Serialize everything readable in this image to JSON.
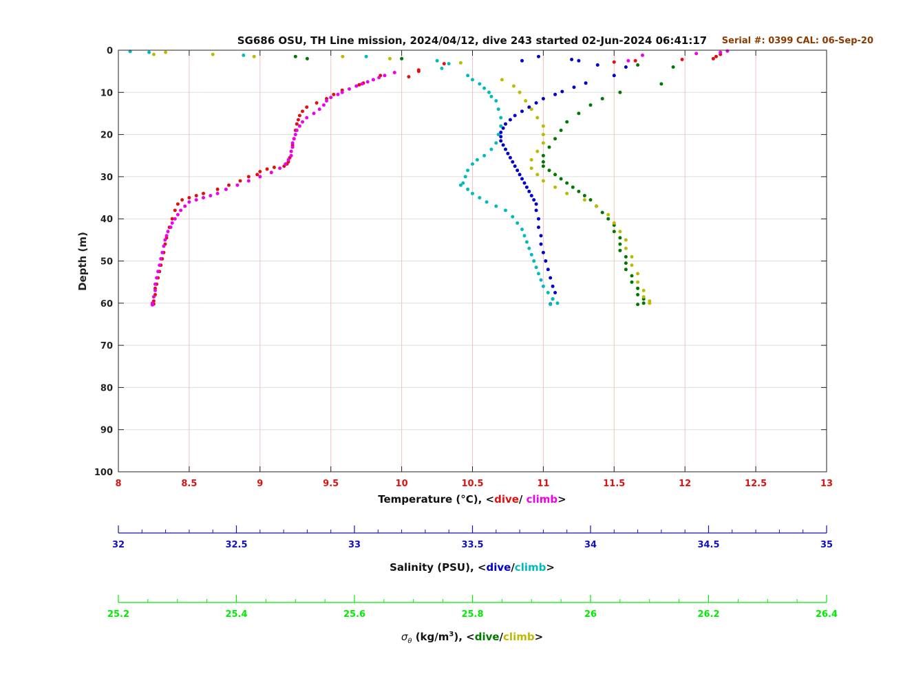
{
  "chart_data": {
    "type": "scatter",
    "title": "SG686 OSU, TH Line mission, 2024/04/12, dive 243 started 02-Jun-2024 06:41:17",
    "serial_text": "Serial #: 0399  CAL: 06-Sep-20",
    "ylabel": "Depth (m)",
    "ylim": [
      0,
      100
    ],
    "y_reversed": true,
    "y_ticks": [
      "0",
      "10",
      "20",
      "30",
      "40",
      "50",
      "60",
      "70",
      "80",
      "90",
      "100"
    ],
    "grid": true,
    "colors": {
      "temp_axis": "#e01010",
      "sal_axis": "#1010c0",
      "sig_axis": "#00ee00",
      "temp_dive": "#e01010",
      "temp_climb": "#ee00ee",
      "sal_dive": "#0000cc",
      "sal_climb": "#00bbbb",
      "sig_dive": "#007700",
      "sig_climb": "#bbbb00",
      "serial": "#8b3a00",
      "temp_grid": "#f4c2c2",
      "depth_grid": "#dddddd"
    },
    "axes": [
      {
        "id": "temperature",
        "label_prefix": "Temperature (°C), <",
        "label_dive": "dive",
        "label_sep": "/ ",
        "label_climb": "climb",
        "label_suffix": ">",
        "range": [
          8,
          13
        ],
        "ticks": [
          "8",
          "8.5",
          "9",
          "9.5",
          "10",
          "10.5",
          "11",
          "11.5",
          "12",
          "12.5",
          "13"
        ]
      },
      {
        "id": "salinity",
        "label_prefix": "Salinity (PSU), <",
        "label_dive": "dive",
        "label_sep": "/",
        "label_climb": "climb",
        "label_suffix": ">",
        "range": [
          32,
          35
        ],
        "ticks": [
          "32",
          "32.5",
          "33",
          "33.5",
          "34",
          "34.5",
          "35"
        ]
      },
      {
        "id": "sigma",
        "label_sym": "σ",
        "label_sub": "θ",
        "label_units": " (kg/m",
        "label_sup": "3",
        "label_prefix": "), <",
        "label_dive": "dive",
        "label_sep": "/",
        "label_climb": "climb",
        "label_suffix": ">",
        "range": [
          25.2,
          26.4
        ],
        "ticks": [
          "25.2",
          "25.4",
          "25.6",
          "25.8",
          "26",
          "26.2",
          "26.4"
        ]
      }
    ],
    "series": [
      {
        "name": "dive",
        "variable": "temperature",
        "x": [
          12.25,
          12.22,
          12.2,
          11.98,
          11.65,
          11.5,
          10.3,
          10.12,
          10.05,
          10.12,
          9.85,
          9.8,
          9.73,
          9.7,
          9.58,
          9.52,
          9.47,
          9.4,
          9.33,
          9.3,
          9.28,
          9.27,
          9.26,
          9.25,
          9.24,
          9.23,
          9.22,
          9.21,
          9.2,
          9.19,
          9.17,
          9.1,
          9.05,
          9.0,
          8.98,
          8.92,
          8.86,
          8.78,
          8.7,
          8.6,
          8.55,
          8.5,
          8.45,
          8.42,
          8.4,
          8.38,
          8.36,
          8.34,
          8.33,
          8.32,
          8.31,
          8.3,
          8.29,
          8.28,
          8.27,
          8.26,
          8.26,
          8.25,
          8.25
        ],
        "y": [
          1.0,
          1.5,
          2.0,
          2.2,
          2.5,
          2.8,
          3.2,
          4.7,
          6.3,
          5.0,
          6.0,
          7.0,
          7.8,
          8.2,
          9.5,
          10.5,
          11.5,
          12.5,
          13.5,
          14.5,
          15.5,
          16.5,
          17.5,
          19.0,
          21.0,
          22.5,
          24.0,
          25.5,
          26.5,
          27.0,
          27.5,
          27.8,
          28.2,
          28.8,
          29.5,
          30.0,
          31.0,
          32.0,
          33.0,
          34.0,
          34.5,
          35.0,
          35.5,
          36.5,
          38.0,
          40.0,
          42.0,
          44.5,
          46.0,
          48.0,
          49.5,
          51.0,
          52.5,
          54.0,
          55.5,
          56.5,
          58.0,
          59.5,
          60.2
        ]
      },
      {
        "name": "climb",
        "variable": "temperature",
        "x": [
          12.3,
          12.25,
          12.08,
          11.7,
          11.6,
          9.95,
          9.88,
          9.84,
          9.8,
          9.76,
          9.72,
          9.68,
          9.63,
          9.58,
          9.55,
          9.5,
          9.47,
          9.45,
          9.42,
          9.38,
          9.33,
          9.3,
          9.28,
          9.26,
          9.25,
          9.24,
          9.23,
          9.23,
          9.22,
          9.22,
          9.2,
          9.18,
          9.14,
          9.08,
          9.0,
          8.92,
          8.84,
          8.76,
          8.7,
          8.65,
          8.6,
          8.55,
          8.5,
          8.47,
          8.44,
          8.42,
          8.4,
          8.38,
          8.37,
          8.35,
          8.34,
          8.33,
          8.32,
          8.31,
          8.3,
          8.29,
          8.28,
          8.27,
          8.26,
          8.26,
          8.25,
          8.24,
          8.24
        ],
        "y": [
          0.2,
          0.5,
          0.8,
          1.2,
          2.5,
          5.3,
          6.0,
          6.5,
          7.0,
          7.5,
          8.0,
          8.5,
          9.2,
          10.0,
          10.5,
          11.2,
          12.0,
          13.0,
          14.0,
          15.0,
          16.0,
          17.0,
          18.0,
          19.0,
          20.0,
          21.0,
          22.0,
          23.0,
          24.0,
          25.0,
          26.0,
          27.0,
          28.0,
          29.0,
          30.0,
          31.0,
          32.0,
          33.0,
          34.0,
          34.5,
          35.0,
          35.5,
          36.0,
          37.0,
          38.0,
          39.0,
          40.0,
          41.0,
          42.0,
          43.0,
          44.0,
          45.0,
          46.5,
          48.0,
          49.5,
          51.0,
          52.5,
          54.0,
          55.5,
          57.0,
          58.5,
          60.0,
          60.4
        ]
      },
      {
        "name": "dive",
        "variable": "salinity",
        "x": [
          33.78,
          33.71,
          33.92,
          33.95,
          34.03,
          34.15,
          34.1,
          33.98,
          33.93,
          33.88,
          33.85,
          33.8,
          33.77,
          33.74,
          33.71,
          33.68,
          33.66,
          33.64,
          33.63,
          33.62,
          33.62,
          33.62,
          33.63,
          33.64,
          33.65,
          33.66,
          33.67,
          33.68,
          33.69,
          33.7,
          33.71,
          33.72,
          33.73,
          33.74,
          33.75,
          33.76,
          33.77,
          33.77,
          33.78,
          33.78,
          33.79,
          33.79,
          33.8,
          33.81,
          33.82,
          33.83,
          33.84,
          33.85,
          33.84,
          33.83
        ],
        "y": [
          1.5,
          2.5,
          2.2,
          2.5,
          3.5,
          4.0,
          6.0,
          7.8,
          8.8,
          9.8,
          10.5,
          11.5,
          12.5,
          13.5,
          14.5,
          15.5,
          16.5,
          17.5,
          18.5,
          19.5,
          20.5,
          21.5,
          22.5,
          23.5,
          24.5,
          25.5,
          26.5,
          27.5,
          28.5,
          29.5,
          30.5,
          31.5,
          32.5,
          33.5,
          34.5,
          35.5,
          36.5,
          38.0,
          40.0,
          42.0,
          44.0,
          46.0,
          48.0,
          50.0,
          52.0,
          54.0,
          56.0,
          57.5,
          59.0,
          60.2
        ]
      },
      {
        "name": "climb",
        "variable": "salinity",
        "x": [
          32.05,
          32.13,
          32.53,
          33.05,
          33.35,
          33.4,
          33.37,
          33.48,
          33.5,
          33.53,
          33.55,
          33.57,
          33.58,
          33.6,
          33.61,
          33.62,
          33.62,
          33.61,
          33.6,
          33.58,
          33.55,
          33.52,
          33.5,
          33.48,
          33.47,
          33.46,
          33.45,
          33.48,
          33.5,
          33.53,
          33.56,
          33.6,
          33.64,
          33.67,
          33.69,
          33.71,
          33.72,
          33.73,
          33.74,
          33.75,
          33.76,
          33.77,
          33.78,
          33.79,
          33.8,
          33.82,
          33.84,
          33.86,
          33.83
        ],
        "y": [
          0.3,
          0.5,
          1.2,
          1.5,
          2.5,
          3.2,
          4.3,
          6.0,
          7.0,
          8.0,
          9.0,
          10.0,
          11.0,
          12.0,
          14.0,
          16.0,
          18.0,
          20.0,
          22.0,
          23.5,
          25.0,
          26.0,
          27.0,
          28.5,
          30.0,
          31.5,
          32.0,
          33.0,
          34.0,
          35.0,
          36.0,
          37.0,
          38.0,
          39.5,
          41.0,
          42.5,
          44.0,
          45.5,
          47.0,
          48.5,
          50.0,
          51.5,
          53.0,
          54.5,
          56.0,
          57.5,
          59.0,
          60.0,
          60.3
        ]
      },
      {
        "name": "dive",
        "variable": "sigma",
        "x": [
          25.5,
          25.52,
          25.68,
          26.08,
          26.14,
          26.12,
          26.05,
          26.02,
          26.0,
          25.98,
          25.96,
          25.95,
          25.94,
          25.93,
          25.92,
          25.92,
          25.92,
          25.93,
          25.94,
          25.95,
          25.96,
          25.97,
          25.98,
          25.99,
          26.0,
          26.01,
          26.02,
          26.03,
          26.04,
          26.04,
          26.05,
          26.05,
          26.05,
          26.06,
          26.06,
          26.06,
          26.07,
          26.07,
          26.08,
          26.08,
          26.09,
          26.09,
          26.08
        ],
        "y": [
          1.5,
          2.0,
          2.0,
          3.5,
          4.0,
          8.0,
          10.0,
          11.5,
          13.0,
          15.0,
          17.0,
          19.0,
          21.0,
          23.0,
          25.0,
          26.5,
          27.5,
          28.5,
          29.5,
          30.5,
          31.5,
          32.5,
          33.5,
          34.5,
          35.5,
          37.0,
          38.5,
          40.0,
          41.5,
          43.0,
          44.5,
          46.0,
          47.5,
          49.0,
          50.5,
          52.0,
          53.5,
          55.0,
          56.5,
          58.0,
          59.0,
          60.0,
          60.3
        ]
      },
      {
        "name": "climb",
        "variable": "sigma",
        "x": [
          25.26,
          25.28,
          25.36,
          25.43,
          25.58,
          25.66,
          25.78,
          25.85,
          25.87,
          25.88,
          25.89,
          25.9,
          25.91,
          25.92,
          25.92,
          25.92,
          25.91,
          25.9,
          25.9,
          25.91,
          25.92,
          25.94,
          25.96,
          25.99,
          26.01,
          26.03,
          26.04,
          26.05,
          26.06,
          26.06,
          26.07,
          26.07,
          26.08,
          26.08,
          26.09,
          26.09,
          26.1,
          26.1
        ],
        "y": [
          1.0,
          0.5,
          1.0,
          1.5,
          1.5,
          2.0,
          3.0,
          7.0,
          8.5,
          10.0,
          12.0,
          14.0,
          16.0,
          18.0,
          20.0,
          22.0,
          24.0,
          26.0,
          28.0,
          29.5,
          31.0,
          32.5,
          34.0,
          35.5,
          37.0,
          39.0,
          41.0,
          43.0,
          45.0,
          47.0,
          49.0,
          51.0,
          53.0,
          55.0,
          57.0,
          58.5,
          59.5,
          60.0
        ]
      }
    ]
  }
}
